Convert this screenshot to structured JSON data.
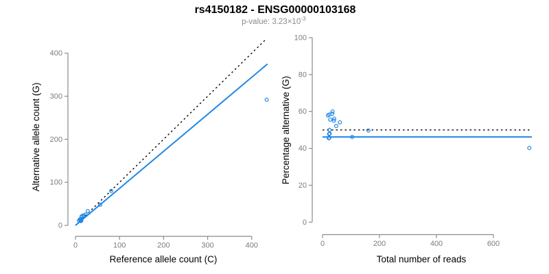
{
  "header": {
    "title": "rs4150182 - ENSG00000103168",
    "subtitle_prefix": "p-value: ",
    "subtitle_mantissa": "3.23",
    "subtitle_times": "×10",
    "subtitle_exponent": "-3"
  },
  "colors": {
    "accent_blue": "#1e87e6",
    "axis_gray": "#8b8b8b",
    "tick_label_gray": "#7b7b7b",
    "subtitle_gray": "#8a8a8a",
    "reference_black": "#000000"
  },
  "chart_data": [
    {
      "id": "allele-counts",
      "type": "scatter",
      "xlabel": "Reference allele count (C)",
      "ylabel": "Alternative allele count (G)",
      "xlim": [
        0,
        450
      ],
      "ylim": [
        0,
        450
      ],
      "xticks": [
        0,
        100,
        200,
        300,
        400
      ],
      "yticks": [
        0,
        100,
        200,
        300,
        400
      ],
      "grid": false,
      "marker": "open-circle",
      "points": [
        [
          8,
          11
        ],
        [
          10,
          14
        ],
        [
          12,
          15
        ],
        [
          12,
          10
        ],
        [
          12,
          11
        ],
        [
          12,
          12
        ],
        [
          13,
          11
        ],
        [
          13,
          12
        ],
        [
          14,
          21
        ],
        [
          14,
          20
        ],
        [
          18,
          23
        ],
        [
          18,
          22
        ],
        [
          23,
          25
        ],
        [
          28,
          33
        ],
        [
          56,
          48
        ],
        [
          81,
          80
        ],
        [
          434,
          292
        ]
      ],
      "lines": [
        {
          "name": "identity-line",
          "dash": "dotted",
          "color": "#000000",
          "slope": 1,
          "intercept": 0,
          "x_range": [
            0,
            434
          ],
          "width": 1.4
        },
        {
          "name": "fit-line",
          "dash": "solid",
          "color": "#1e87e6",
          "slope": 0.86,
          "intercept": 0,
          "x_range": [
            0,
            436
          ],
          "width": 2
        }
      ]
    },
    {
      "id": "percentage-vs-reads",
      "type": "scatter",
      "xlabel": "Total number of reads",
      "ylabel": "Percentage alternative (G)",
      "xlim": [
        0,
        740
      ],
      "ylim": [
        0,
        100
      ],
      "xticks": [
        0,
        200,
        400,
        600
      ],
      "yticks": [
        0,
        20,
        40,
        60,
        80,
        100
      ],
      "grid": false,
      "marker": "open-circle",
      "points": [
        [
          19,
          57.9
        ],
        [
          24,
          58.3
        ],
        [
          27,
          55.6
        ],
        [
          22,
          45.5
        ],
        [
          23,
          47.8
        ],
        [
          24,
          50.0
        ],
        [
          24,
          45.8
        ],
        [
          25,
          48.0
        ],
        [
          35,
          60.0
        ],
        [
          34,
          58.8
        ],
        [
          41,
          56.1
        ],
        [
          40,
          55.0
        ],
        [
          48,
          52.1
        ],
        [
          61,
          54.1
        ],
        [
          104,
          46.2
        ],
        [
          161,
          49.7
        ],
        [
          726,
          40.2
        ]
      ],
      "lines": [
        {
          "name": "fifty-percent-line",
          "dash": "dotted",
          "color": "#000000",
          "y": 50,
          "x_range": [
            0,
            728
          ],
          "width": 1.4
        },
        {
          "name": "mean-percentage-line",
          "dash": "solid",
          "color": "#1e87e6",
          "y": 46.2,
          "x_range": [
            0,
            735
          ],
          "width": 2
        }
      ]
    }
  ]
}
